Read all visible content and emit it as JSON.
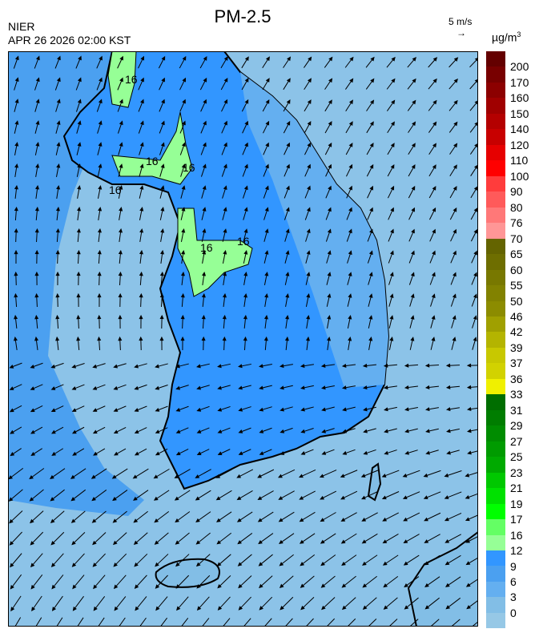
{
  "header": {
    "title": "PM-2.5",
    "organization": "NIER",
    "timestamp": "APR 26 2026 02:00 KST",
    "wind_scale": "5 m/s",
    "wind_scale_arrow": "→",
    "unit": "µg/m",
    "unit_sup": "3"
  },
  "map": {
    "sea_color": "#8cc3e8",
    "land_colors": [
      "#3296ff",
      "#4ba0f0",
      "#64aff0",
      "#82bee6"
    ],
    "hotspot_colors": [
      "#96ff96",
      "#64ff64",
      "#00ff00",
      "#00e100"
    ],
    "contour_labels": [
      "16",
      "16",
      "16",
      "16",
      "16",
      "16"
    ],
    "coastline_color": "#000000"
  },
  "legend": {
    "labels": [
      "200",
      "170",
      "160",
      "150",
      "140",
      "120",
      "110",
      "100",
      "90",
      "80",
      "76",
      "70",
      "65",
      "60",
      "55",
      "50",
      "46",
      "42",
      "39",
      "37",
      "36",
      "33",
      "31",
      "29",
      "27",
      "25",
      "23",
      "21",
      "19",
      "17",
      "16",
      "12",
      "9",
      "6",
      "3",
      "0"
    ],
    "colors": [
      "#640000",
      "#780000",
      "#8c0000",
      "#a00000",
      "#b40000",
      "#c80000",
      "#e60000",
      "#ff0000",
      "#ff3c3c",
      "#ff5a5a",
      "#ff7878",
      "#ff9696",
      "#646400",
      "#6e6e00",
      "#787800",
      "#828200",
      "#8c8c00",
      "#a0a000",
      "#b4b400",
      "#c8c800",
      "#d2d200",
      "#f0f000",
      "#006e00",
      "#007d00",
      "#008c00",
      "#009b00",
      "#00aa00",
      "#00c800",
      "#00e100",
      "#00ff00",
      "#64ff64",
      "#96ff96",
      "#3296ff",
      "#4ba0f0",
      "#64aff0",
      "#82bee6",
      "#96c8e6"
    ]
  }
}
